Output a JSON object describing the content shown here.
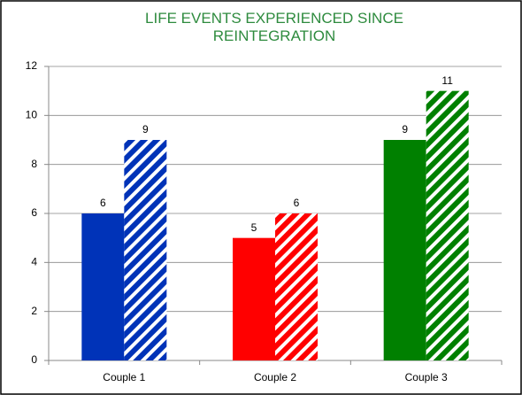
{
  "chart_data": {
    "type": "bar",
    "title": "LIFE EVENTS EXPERIENCED SINCE REINTEGRATION",
    "categories": [
      "Couple 1",
      "Couple 2",
      "Couple 3"
    ],
    "series": [
      {
        "values": [
          6,
          5,
          9
        ],
        "colors": [
          "#0033b8",
          "#ff0000",
          "#008000"
        ],
        "pattern": "solid"
      },
      {
        "values": [
          9,
          6,
          11
        ],
        "colors": [
          "#0033b8",
          "#ff0000",
          "#008000"
        ],
        "pattern": "hatched"
      }
    ],
    "ylim": [
      0,
      12
    ],
    "yticks": [
      0,
      2,
      4,
      6,
      8,
      10,
      12
    ],
    "grid": true
  }
}
